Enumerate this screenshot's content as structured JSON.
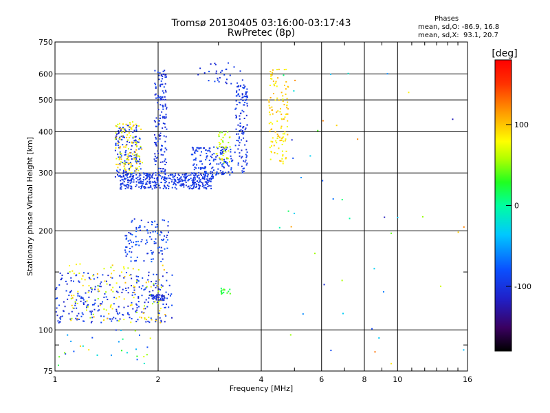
{
  "header": {
    "title_line1": "Tromsø 20130405 03:16:00-03:17:43",
    "title_line2": "RwPretec (8p)",
    "stats_heading": "Phases",
    "stats_line1": "mean, sd,O: -86.9, 16.8",
    "stats_line2": "mean, sd,X:  93.1, 20.7"
  },
  "colorbar": {
    "unit_label": "[deg]",
    "range": [
      -180,
      180
    ],
    "ticks": [
      {
        "value": 100,
        "label": "100"
      },
      {
        "value": 0,
        "label": "0"
      },
      {
        "value": -100,
        "label": "-100"
      }
    ]
  },
  "chart_data": {
    "type": "scatter",
    "title": "Tromsø 20130405 03:16:00-03:17:43",
    "subtitle": "RwPretec (8p)",
    "xlabel": "Frequency [MHz]",
    "ylabel": "Stationary phase Virtual Height [km]",
    "xscale": "log",
    "yscale": "log",
    "xlim": [
      1,
      16
    ],
    "ylim": [
      75,
      750
    ],
    "xticks": [
      1,
      2,
      4,
      6,
      8,
      10,
      16
    ],
    "xtick_labels": [
      "1",
      "2",
      "4",
      "6",
      "8",
      "10",
      "16"
    ],
    "xgrid": [
      2,
      4,
      6,
      8,
      10
    ],
    "xminor": [
      3,
      5,
      7,
      9,
      11,
      12,
      13,
      14,
      15
    ],
    "yticks": [
      75,
      100,
      200,
      300,
      400,
      500,
      600,
      750
    ],
    "ytick_labels": [
      "75",
      "100",
      "200",
      "300",
      "400",
      "500",
      "600",
      "750"
    ],
    "ygrid": [
      100,
      200,
      300,
      400,
      500,
      600
    ],
    "yminor": [
      90,
      150
    ],
    "color_encoding": "phase [deg]",
    "clusters": [
      {
        "name": "O-trace F-region floor",
        "f": [
          1.55,
          2.9
        ],
        "h": [
          268,
          300
        ],
        "phase": [
          -110,
          -85
        ],
        "n": 380
      },
      {
        "name": "O-trace low branch",
        "f": [
          1.5,
          1.78
        ],
        "h": [
          290,
          420
        ],
        "phase": [
          -115,
          -80
        ],
        "n": 140
      },
      {
        "name": "O-trace cusp near 2 MHz",
        "f": [
          1.95,
          2.12
        ],
        "h": [
          300,
          620
        ],
        "phase": [
          -115,
          -85
        ],
        "n": 140
      },
      {
        "name": "O-trace rising branch",
        "f": [
          2.5,
          3.3
        ],
        "h": [
          295,
          360
        ],
        "phase": [
          -110,
          -80
        ],
        "n": 150
      },
      {
        "name": "O-trace cusp near 3.6 MHz",
        "f": [
          3.35,
          3.65
        ],
        "h": [
          300,
          560
        ],
        "phase": [
          -110,
          -85
        ],
        "n": 120
      },
      {
        "name": "Upper scattered trace",
        "f": [
          2.6,
          3.55
        ],
        "h": [
          560,
          650
        ],
        "phase": [
          -110,
          -85
        ],
        "n": 30
      },
      {
        "name": "X-trace branch",
        "f": [
          1.5,
          1.8
        ],
        "h": [
          300,
          430
        ],
        "phase": [
          60,
          110
        ],
        "n": 110
      },
      {
        "name": "X-trace near 4.5 MHz",
        "f": [
          4.2,
          4.8
        ],
        "h": [
          320,
          620
        ],
        "phase": [
          70,
          110
        ],
        "n": 120
      },
      {
        "name": "X-trace near 3.1 MHz",
        "f": [
          2.95,
          3.25
        ],
        "h": [
          320,
          400
        ],
        "phase": [
          40,
          90
        ],
        "n": 40
      },
      {
        "name": "E-region spread (blue)",
        "f": [
          1.0,
          2.2
        ],
        "h": [
          105,
          150
        ],
        "phase": [
          -115,
          -80
        ],
        "n": 260
      },
      {
        "name": "E-region spread (mixed)",
        "f": [
          1.1,
          2.1
        ],
        "h": [
          105,
          160
        ],
        "phase": [
          50,
          110
        ],
        "n": 120
      },
      {
        "name": "Sporadic layer near 125 km",
        "f": [
          1.9,
          2.1
        ],
        "h": [
          123,
          128
        ],
        "phase": [
          -115,
          -95
        ],
        "n": 40
      },
      {
        "name": "Intermediate layer",
        "f": [
          1.6,
          2.15
        ],
        "h": [
          160,
          220
        ],
        "phase": [
          -110,
          -70
        ],
        "n": 110
      },
      {
        "name": "Green patch near 3.1 MHz",
        "f": [
          3.05,
          3.25
        ],
        "h": [
          128,
          136
        ],
        "phase": [
          10,
          40
        ],
        "n": 14
      },
      {
        "name": "Low echoes",
        "f": [
          1.0,
          1.9
        ],
        "h": [
          78,
          100
        ],
        "phase": [
          -110,
          100
        ],
        "n": 30
      },
      {
        "name": "Sparse high-frequency noise",
        "f": [
          4.5,
          16
        ],
        "h": [
          78,
          650
        ],
        "phase": [
          -120,
          130
        ],
        "n": 45
      }
    ]
  }
}
